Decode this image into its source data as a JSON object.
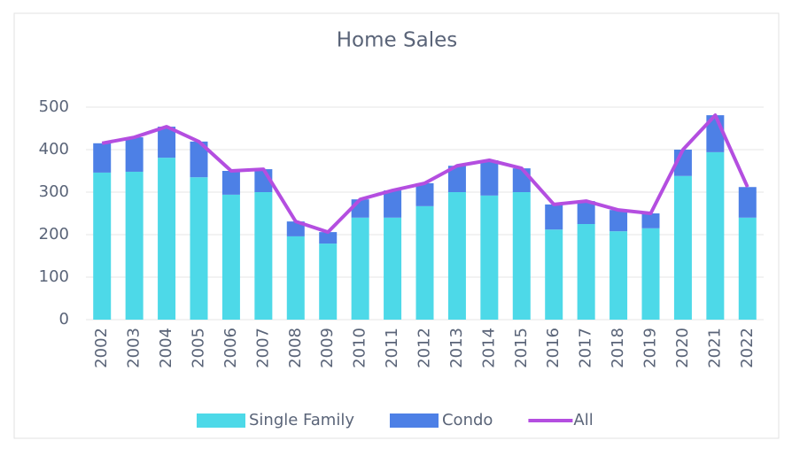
{
  "chart_data": {
    "type": "bar",
    "stacked": true,
    "title": "Home Sales",
    "categories": [
      "2002",
      "2003",
      "2004",
      "2005",
      "2006",
      "2007",
      "2008",
      "2009",
      "2010",
      "2011",
      "2012",
      "2013",
      "2014",
      "2015",
      "2016",
      "2017",
      "2018",
      "2019",
      "2020",
      "2021",
      "2022"
    ],
    "series": [
      {
        "name": "Single Family",
        "color": "#4dd9e8",
        "values": [
          346,
          348,
          381,
          335,
          294,
          300,
          196,
          179,
          240,
          240,
          267,
          300,
          292,
          300,
          212,
          225,
          208,
          215,
          338,
          394,
          240
        ]
      },
      {
        "name": "Condo",
        "color": "#4d80e6",
        "values": [
          69,
          81,
          73,
          84,
          56,
          54,
          35,
          27,
          43,
          64,
          54,
          62,
          83,
          56,
          59,
          54,
          50,
          35,
          62,
          87,
          72
        ]
      },
      {
        "name": "All",
        "type": "line",
        "color": "#b44ee0",
        "values": [
          415,
          429,
          454,
          419,
          350,
          354,
          231,
          206,
          283,
          304,
          321,
          362,
          375,
          356,
          271,
          279,
          258,
          250,
          400,
          481,
          312
        ]
      }
    ],
    "ylim": [
      0,
      500
    ],
    "yticks": [
      0,
      100,
      200,
      300,
      400,
      500
    ],
    "grid": true,
    "legend": "bottom"
  }
}
